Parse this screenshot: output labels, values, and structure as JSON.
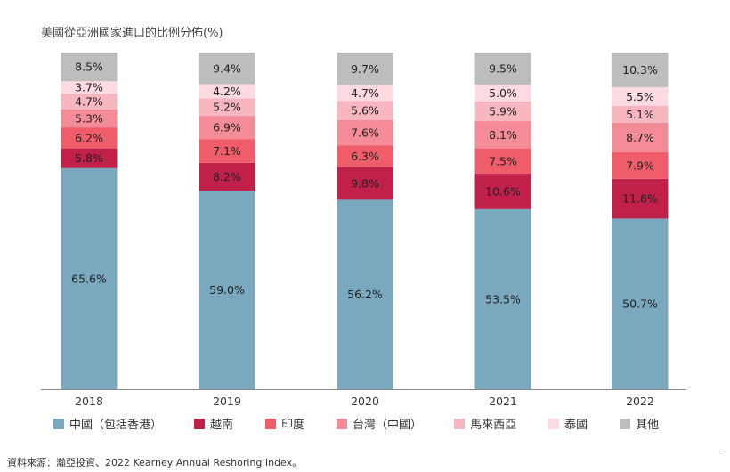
{
  "chart_data": {
    "type": "bar",
    "stacked": true,
    "title": "美國從亞洲國家進口的比例分佈(%)",
    "categories": [
      "2018",
      "2019",
      "2020",
      "2021",
      "2022"
    ],
    "ylim": [
      0,
      100
    ],
    "series": [
      {
        "name": "中國（包括香港）",
        "color": "#7aa8bf",
        "values": [
          65.6,
          59.0,
          56.2,
          53.5,
          50.7
        ],
        "labels": [
          "65.6%",
          "59.0%",
          "56.2%",
          "53.5%",
          "50.7%"
        ]
      },
      {
        "name": "越南",
        "color": "#c0204a",
        "values": [
          5.8,
          8.2,
          9.8,
          10.6,
          11.8
        ],
        "labels": [
          "5.8%",
          "8.2%",
          "9.8%",
          "10.6%",
          "11.8%"
        ]
      },
      {
        "name": "印度",
        "color": "#f05d6a",
        "values": [
          6.2,
          7.1,
          6.3,
          7.5,
          7.9
        ],
        "labels": [
          "6.2%",
          "7.1%",
          "6.3%",
          "7.5%",
          "7.9%"
        ]
      },
      {
        "name": "台灣（中國）",
        "color": "#f38c97",
        "values": [
          5.3,
          6.9,
          7.6,
          8.1,
          8.7
        ],
        "labels": [
          "5.3%",
          "6.9%",
          "7.6%",
          "8.1%",
          "8.7%"
        ]
      },
      {
        "name": "馬來西亞",
        "color": "#f8b7c0",
        "values": [
          4.7,
          5.2,
          5.6,
          5.9,
          5.1
        ],
        "labels": [
          "4.7%",
          "5.2%",
          "5.6%",
          "5.9%",
          "5.1%"
        ]
      },
      {
        "name": "泰國",
        "color": "#fcdbe0",
        "values": [
          3.7,
          4.2,
          4.7,
          5.0,
          5.5
        ],
        "labels": [
          "3.7%",
          "4.2%",
          "4.7%",
          "5.0%",
          "5.5%"
        ]
      },
      {
        "name": "其他",
        "color": "#bdbdbd",
        "values": [
          8.5,
          9.4,
          9.7,
          9.5,
          10.3
        ],
        "labels": [
          "8.5%",
          "9.4%",
          "9.7%",
          "9.5%",
          "10.3%"
        ]
      }
    ],
    "legend_position": "bottom",
    "grid": false
  },
  "source": "資料來源：瀚亞投資、2022 Kearney Annual Reshoring Index。"
}
